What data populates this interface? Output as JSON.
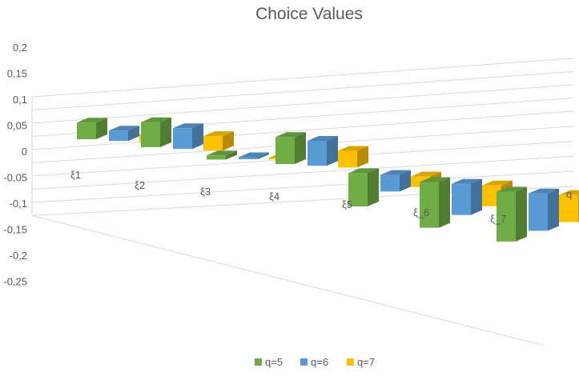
{
  "chart_data": {
    "type": "bar",
    "style": "3d-column",
    "title": "Choice Values",
    "categories": [
      "ξ1",
      "ξ2",
      "ξ3",
      "ξ4",
      "ξ5",
      "ξ_6",
      "ξ_7"
    ],
    "series": [
      {
        "name": "q=5",
        "color": "#70AD47",
        "values": [
          0.08,
          0.12,
          -0.02,
          0.13,
          -0.16,
          -0.22,
          -0.24
        ]
      },
      {
        "name": "q=6",
        "color": "#5B9BD5",
        "values": [
          0.05,
          0.1,
          -0.01,
          0.12,
          -0.08,
          -0.15,
          -0.18
        ]
      },
      {
        "name": "q=7",
        "color": "#FFC000",
        "values": [
          0.04,
          0.07,
          0.005,
          0.08,
          -0.05,
          -0.1,
          -0.13
        ]
      }
    ],
    "y_ticks": [
      "0,2",
      "0,15",
      "0,1",
      "0,05",
      "0",
      "-0,05",
      "-0,1",
      "-0,15",
      "-0,2",
      "-0,25"
    ],
    "ylim": [
      -0.25,
      0.2
    ],
    "depth_axis_label": "q",
    "grid": true,
    "legend_position": "bottom"
  }
}
